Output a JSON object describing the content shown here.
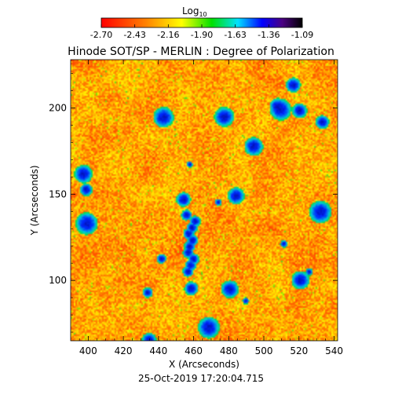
{
  "chart_data": {
    "type": "heatmap",
    "title": "Hinode SOT/SP - MERLIN : Degree of Polarization",
    "xlabel": "X (Arcseconds)",
    "ylabel": "Y (Arcseconds)",
    "footer": "25-Oct-2019 17:20:04.715",
    "xlim": [
      390,
      542
    ],
    "ylim": [
      65,
      228
    ],
    "x_ticks": [
      400,
      420,
      440,
      460,
      480,
      500,
      520,
      540
    ],
    "y_ticks": [
      100,
      150,
      200
    ],
    "colorbar": {
      "title": "Log",
      "title_subscript": "10",
      "range": [
        -2.7,
        -1.09
      ],
      "tick_labels": [
        "-2.70",
        "-2.43",
        "-2.16",
        "-1.90",
        "-1.63",
        "-1.36",
        "-1.09"
      ],
      "colors": [
        "#ff0000",
        "#ff8000",
        "#ffff00",
        "#00e000",
        "#00e0ff",
        "#0000ff",
        "#4b0082",
        "#000000"
      ]
    },
    "colormap_values": "dense field: predominantly -2.6 to -2.3, scattered enhanced patches up to about -1.6"
  }
}
